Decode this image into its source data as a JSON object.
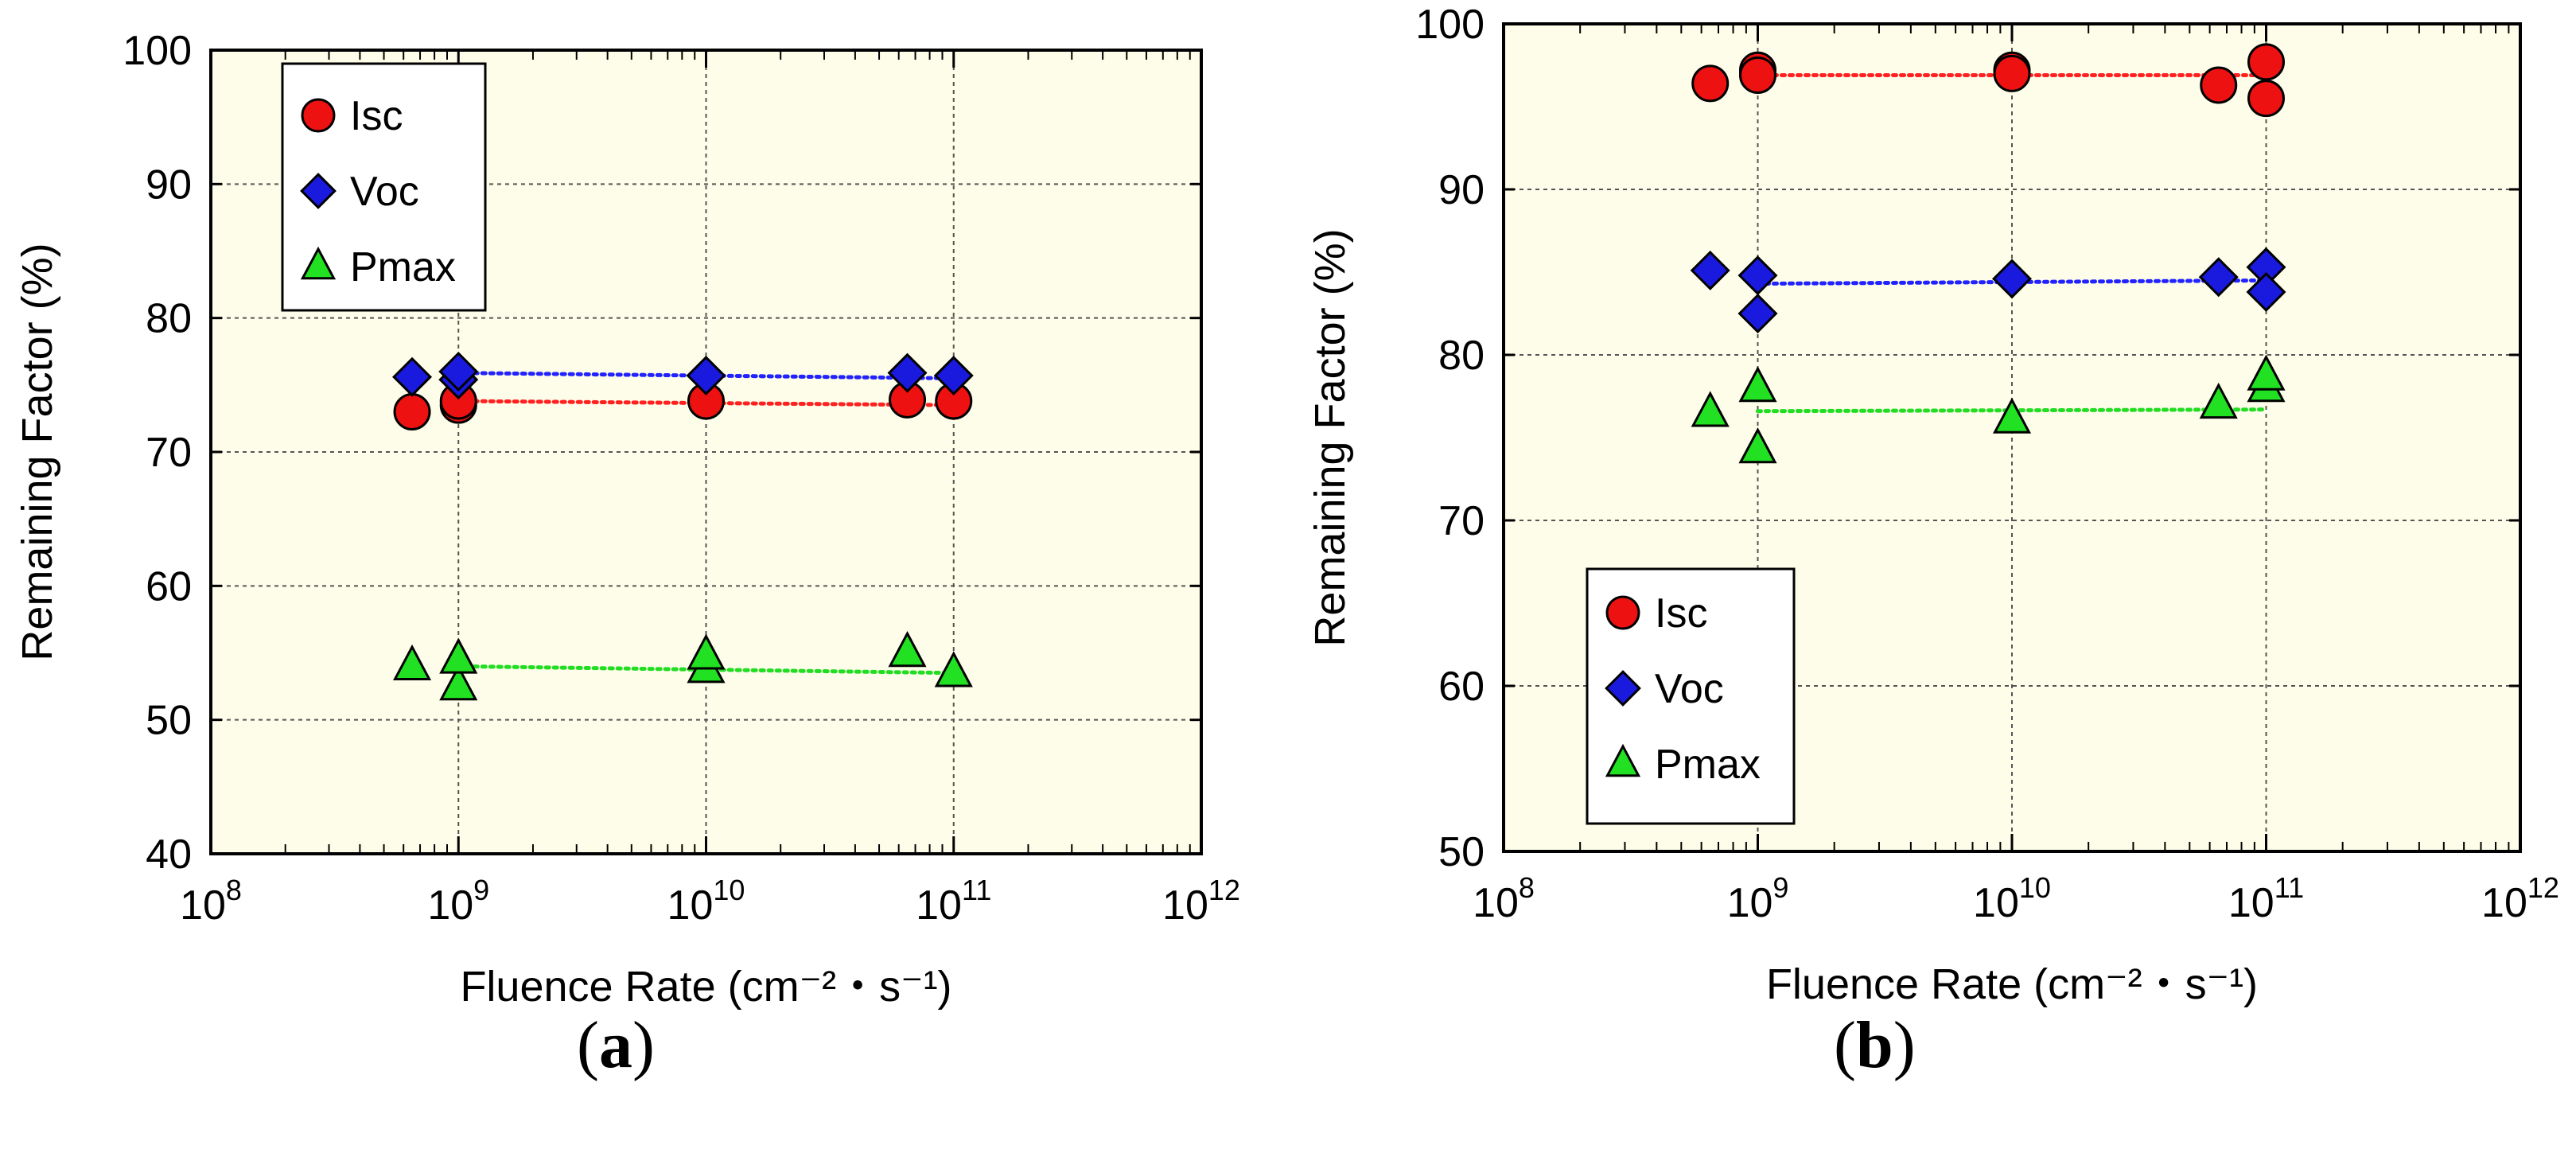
{
  "colors": {
    "plot_bg": "#fdfde9",
    "isc": "#ee1111",
    "voc": "#1a1adf",
    "pmax": "#22e022",
    "isc_fit": "#ff2020",
    "voc_fit": "#2222ff",
    "pmax_fit": "#22dd22"
  },
  "chart_data": [
    {
      "id": "a",
      "type": "scatter",
      "caption_letter": "a",
      "xlabel": "Fluence Rate (cm⁻²・s⁻¹)",
      "ylabel": "Remaining Factor (%)",
      "x_scale": "log",
      "xlim": [
        100000000.0,
        1000000000000.0
      ],
      "ylim": [
        40,
        100
      ],
      "y_ticks": [
        40,
        50,
        60,
        70,
        80,
        90,
        100
      ],
      "x_tick_exponents": [
        8,
        9,
        10,
        11,
        12
      ],
      "x_tick_base": "10",
      "grid": true,
      "legend_position": "top-left",
      "legend_entries": [
        "Isc",
        "Voc",
        "Pmax"
      ],
      "series": [
        {
          "name": "Isc",
          "marker": "circle",
          "x": [
            650000000.0,
            1000000000.0,
            1000000000.0,
            10000000000.0,
            65000000000.0,
            100000000000.0
          ],
          "y": [
            73.0,
            73.5,
            73.8,
            73.8,
            73.9,
            73.8
          ],
          "fit": {
            "x": [
              1000000000.0,
              100000000000.0
            ],
            "y": [
              73.8,
              73.5
            ]
          }
        },
        {
          "name": "Voc",
          "marker": "diamond",
          "x": [
            650000000.0,
            1000000000.0,
            1000000000.0,
            10000000000.0,
            65000000000.0,
            100000000000.0
          ],
          "y": [
            75.6,
            75.4,
            76.0,
            75.7,
            75.9,
            75.7
          ],
          "fit": {
            "x": [
              1000000000.0,
              100000000000.0
            ],
            "y": [
              75.9,
              75.5
            ]
          }
        },
        {
          "name": "Pmax",
          "marker": "triangle",
          "x": [
            650000000.0,
            1000000000.0,
            1000000000.0,
            10000000000.0,
            10000000000.0,
            65000000000.0,
            100000000000.0
          ],
          "y": [
            54.0,
            52.5,
            54.5,
            53.8,
            54.8,
            55.0,
            53.5
          ],
          "fit": {
            "x": [
              1000000000.0,
              100000000000.0
            ],
            "y": [
              54.0,
              53.5
            ]
          }
        }
      ]
    },
    {
      "id": "b",
      "type": "scatter",
      "caption_letter": "b",
      "xlabel": "Fluence Rate (cm⁻²・s⁻¹)",
      "ylabel": "Remaining Factor (%)",
      "x_scale": "log",
      "xlim": [
        100000000.0,
        1000000000000.0
      ],
      "ylim": [
        50,
        100
      ],
      "y_ticks": [
        50,
        60,
        70,
        80,
        90,
        100
      ],
      "x_tick_exponents": [
        8,
        9,
        10,
        11,
        12
      ],
      "x_tick_base": "10",
      "grid": true,
      "legend_position": "bottom-left",
      "legend_entries": [
        "Isc",
        "Voc",
        "Pmax"
      ],
      "series": [
        {
          "name": "Isc",
          "marker": "circle",
          "x": [
            650000000.0,
            1000000000.0,
            1000000000.0,
            10000000000.0,
            10000000000.0,
            65000000000.0,
            100000000000.0,
            100000000000.0
          ],
          "y": [
            96.4,
            97.2,
            96.9,
            97.2,
            97.0,
            96.3,
            97.7,
            95.5
          ],
          "fit": {
            "x": [
              1000000000.0,
              100000000000.0
            ],
            "y": [
              96.9,
              96.9
            ]
          }
        },
        {
          "name": "Voc",
          "marker": "diamond",
          "x": [
            650000000.0,
            1000000000.0,
            1000000000.0,
            10000000000.0,
            65000000000.0,
            100000000000.0,
            100000000000.0
          ],
          "y": [
            85.1,
            84.8,
            82.5,
            84.6,
            84.7,
            85.3,
            83.8
          ],
          "fit": {
            "x": [
              1000000000.0,
              100000000000.0
            ],
            "y": [
              84.3,
              84.5
            ]
          }
        },
        {
          "name": "Pmax",
          "marker": "triangle",
          "x": [
            650000000.0,
            1000000000.0,
            1000000000.0,
            10000000000.0,
            65000000000.0,
            100000000000.0,
            100000000000.0
          ],
          "y": [
            76.5,
            78.0,
            74.3,
            76.1,
            77.0,
            78.0,
            78.7
          ],
          "fit": {
            "x": [
              1000000000.0,
              100000000000.0
            ],
            "y": [
              76.6,
              76.7
            ]
          }
        }
      ]
    }
  ]
}
